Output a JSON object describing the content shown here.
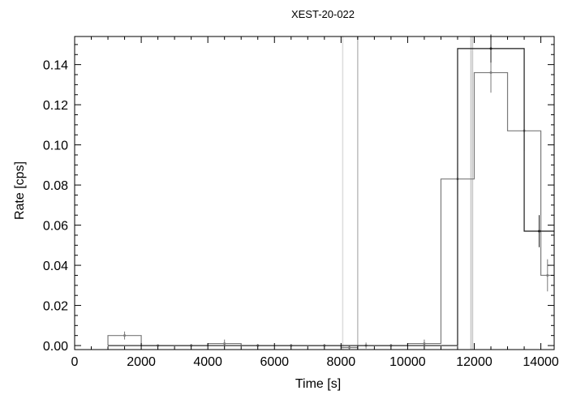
{
  "chart_data": {
    "type": "line",
    "title": "XEST-20-022",
    "xlabel": "Time [s]",
    "ylabel": "Rate [cps]",
    "xlim": [
      0,
      14400
    ],
    "ylim": [
      -0.002,
      0.154
    ],
    "x_ticks": [
      0,
      2000,
      4000,
      6000,
      8000,
      10000,
      12000,
      14000
    ],
    "x_tick_labels": [
      "0",
      "2000",
      "4000",
      "6000",
      "8000",
      "10000",
      "12000",
      "14000"
    ],
    "y_ticks": [
      0.0,
      0.02,
      0.04,
      0.06,
      0.08,
      0.1,
      0.12,
      0.14
    ],
    "y_tick_labels": [
      "0.00",
      "0.02",
      "0.04",
      "0.06",
      "0.08",
      "0.10",
      "0.12",
      "0.14"
    ],
    "grid": false,
    "legend": "none",
    "series": [
      {
        "style": "histogram-step",
        "color": "#7a7a7a",
        "bins": [
          {
            "x0": 1000,
            "x1": 2000,
            "y": 0.005,
            "err": 0.002
          },
          {
            "x0": 2000,
            "x1": 3000,
            "y": 0.0,
            "err": 0.0005
          },
          {
            "x0": 3000,
            "x1": 4000,
            "y": 0.0,
            "err": 0.0008
          },
          {
            "x0": 4000,
            "x1": 5000,
            "y": 0.001,
            "err": 0.002
          },
          {
            "x0": 5000,
            "x1": 6000,
            "y": 0.0,
            "err": 0.0008
          },
          {
            "x0": 6000,
            "x1": 7000,
            "y": 0.0,
            "err": 0.0008
          },
          {
            "x0": 7000,
            "x1": 8000,
            "y": 0.0,
            "err": 0.0008
          },
          {
            "x0": 8000,
            "x1": 8500,
            "y": -0.001,
            "err": 0.0008
          },
          {
            "x0": 8500,
            "x1": 9000,
            "y": 0.0,
            "err": 0.0015
          },
          {
            "x0": 9000,
            "x1": 10000,
            "y": 0.0,
            "err": 0.0008
          },
          {
            "x0": 10000,
            "x1": 11000,
            "y": 0.001,
            "err": 0.002
          },
          {
            "x0": 11000,
            "x1": 12000,
            "y": 0.083,
            "err": 0.008
          },
          {
            "x0": 12000,
            "x1": 13000,
            "y": 0.136,
            "err": 0.01
          },
          {
            "x0": 13000,
            "x1": 14000,
            "y": 0.107,
            "err": 0.01
          },
          {
            "x0": 14000,
            "x1": 14400,
            "y": 0.035,
            "err": 0.008
          }
        ]
      },
      {
        "style": "histogram-step",
        "color": "#1a1a1a",
        "bins": [
          {
            "x0": 1000,
            "x1": 2000,
            "y": 0.0,
            "err": 0.0
          },
          {
            "x0": 2000,
            "x1": 11500,
            "y": 0.0,
            "err": 0.0
          },
          {
            "x0": 11500,
            "x1": 13500,
            "y": 0.148,
            "err": 0.007
          },
          {
            "x0": 13500,
            "x1": 14400,
            "y": 0.057,
            "err": 0.008
          }
        ]
      }
    ],
    "vertical_lines": [
      {
        "x": 8050,
        "color": "#dcdcdc"
      },
      {
        "x": 8500,
        "color": "#bdbdbd"
      },
      {
        "x": 11900,
        "color": "#c8c8c8"
      },
      {
        "x": 11950,
        "color": "#c8c8c8"
      }
    ]
  }
}
